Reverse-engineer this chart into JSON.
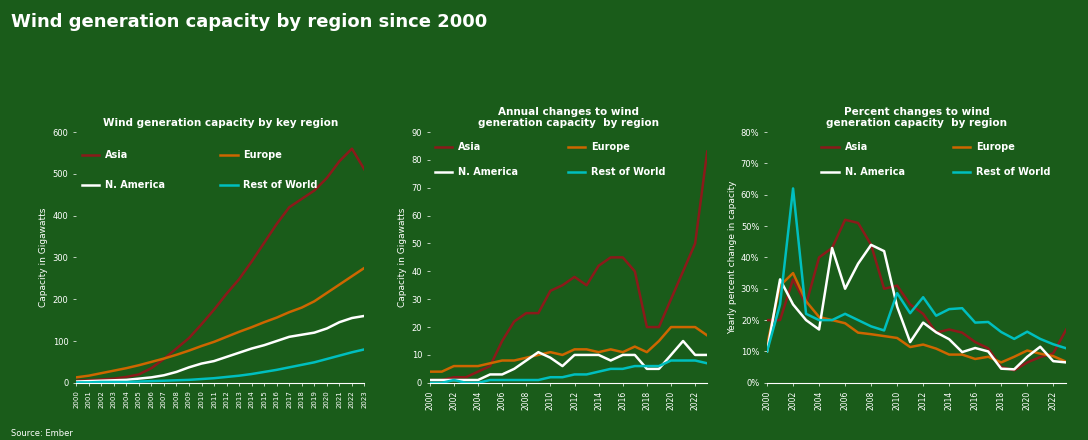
{
  "title": "Wind generation capacity by region since 2000",
  "background_color": "#1a5c1a",
  "text_color": "#ffffff",
  "source": "Source: Ember",
  "years_capacity": [
    2000,
    2001,
    2002,
    2003,
    2004,
    2005,
    2006,
    2007,
    2008,
    2009,
    2010,
    2011,
    2012,
    2013,
    2014,
    2015,
    2016,
    2017,
    2018,
    2019,
    2020,
    2021,
    2022,
    2023
  ],
  "asia_capacity": [
    5,
    6,
    8,
    10,
    14,
    20,
    35,
    57,
    82,
    107,
    140,
    175,
    213,
    248,
    290,
    335,
    380,
    420,
    440,
    460,
    490,
    530,
    560,
    510
  ],
  "europe_capacity": [
    13,
    17,
    23,
    29,
    35,
    42,
    50,
    58,
    67,
    77,
    88,
    98,
    110,
    122,
    133,
    145,
    156,
    169,
    180,
    195,
    215,
    235,
    255,
    275
  ],
  "namerica_capacity": [
    3,
    4,
    5,
    6,
    7,
    10,
    13,
    18,
    26,
    37,
    46,
    52,
    62,
    72,
    82,
    90,
    100,
    110,
    115,
    120,
    130,
    145,
    155,
    160
  ],
  "row_capacity": [
    1,
    1,
    2,
    2,
    2,
    3,
    4,
    5,
    6,
    7,
    9,
    11,
    14,
    17,
    21,
    26,
    31,
    37,
    43,
    49,
    57,
    65,
    73,
    80
  ],
  "years_annual": [
    2000,
    2001,
    2002,
    2003,
    2004,
    2005,
    2006,
    2007,
    2008,
    2009,
    2010,
    2011,
    2012,
    2013,
    2014,
    2015,
    2016,
    2017,
    2018,
    2019,
    2020,
    2021,
    2022,
    2023
  ],
  "asia_annual": [
    1,
    1,
    2,
    2,
    4,
    6,
    15,
    22,
    25,
    25,
    33,
    35,
    38,
    35,
    42,
    45,
    45,
    40,
    20,
    20,
    30,
    40,
    50,
    83
  ],
  "europe_annual": [
    4,
    4,
    6,
    6,
    6,
    7,
    8,
    8,
    9,
    10,
    11,
    10,
    12,
    12,
    11,
    12,
    11,
    13,
    11,
    15,
    20,
    20,
    20,
    17
  ],
  "namerica_annual": [
    1,
    1,
    1,
    1,
    1,
    3,
    3,
    5,
    8,
    11,
    9,
    6,
    10,
    10,
    10,
    8,
    10,
    10,
    5,
    5,
    10,
    15,
    10,
    10
  ],
  "row_annual": [
    0,
    0,
    1,
    0,
    0,
    1,
    1,
    1,
    1,
    1,
    2,
    2,
    3,
    3,
    4,
    5,
    5,
    6,
    6,
    6,
    8,
    8,
    8,
    7
  ],
  "years_pct": [
    2000,
    2001,
    2002,
    2003,
    2004,
    2005,
    2006,
    2007,
    2008,
    2009,
    2010,
    2011,
    2012,
    2013,
    2014,
    2015,
    2016,
    2017,
    2018,
    2019,
    2020,
    2021,
    2022,
    2023
  ],
  "asia_pct": [
    0.2,
    0.2,
    0.33,
    0.25,
    0.4,
    0.43,
    0.52,
    0.51,
    0.44,
    0.3,
    0.31,
    0.25,
    0.22,
    0.16,
    0.17,
    0.16,
    0.13,
    0.11,
    0.05,
    0.04,
    0.065,
    0.082,
    0.094,
    0.17
  ],
  "europe_pct": [
    0.12,
    0.31,
    0.35,
    0.26,
    0.21,
    0.2,
    0.19,
    0.16,
    0.155,
    0.149,
    0.143,
    0.114,
    0.122,
    0.109,
    0.09,
    0.09,
    0.076,
    0.083,
    0.065,
    0.083,
    0.103,
    0.093,
    0.085,
    0.067
  ],
  "namerica_pct": [
    0.1,
    0.33,
    0.25,
    0.2,
    0.17,
    0.43,
    0.3,
    0.38,
    0.44,
    0.42,
    0.243,
    0.13,
    0.192,
    0.161,
    0.139,
    0.098,
    0.111,
    0.1,
    0.045,
    0.043,
    0.083,
    0.115,
    0.069,
    0.065
  ],
  "row_pct": [
    0.1,
    0.25,
    0.62,
    0.22,
    0.2,
    0.2,
    0.22,
    0.2,
    0.18,
    0.167,
    0.286,
    0.222,
    0.273,
    0.214,
    0.235,
    0.238,
    0.192,
    0.194,
    0.162,
    0.14,
    0.163,
    0.14,
    0.123,
    0.11
  ],
  "subplot1_title": "Wind generation capacity by key region",
  "subplot2_title": "Annual changes to wind\ngeneration capacity  by region",
  "subplot3_title": "Percent changes to wind\ngeneration capacity  by region",
  "ylabel1": "Capacity in Gigawatts",
  "ylabel2": "Capacity in Gigawatts",
  "ylabel3": "Yearly percent change in capacity",
  "ylim1": [
    0,
    600
  ],
  "ylim2": [
    0,
    90
  ],
  "ylim3": [
    0,
    0.8
  ],
  "yticks1": [
    0,
    100,
    200,
    300,
    400,
    500,
    600
  ],
  "yticks2": [
    0,
    10,
    20,
    30,
    40,
    50,
    60,
    70,
    80,
    90
  ],
  "yticks3": [
    0,
    0.1,
    0.2,
    0.3,
    0.4,
    0.5,
    0.6,
    0.7,
    0.8
  ],
  "color_asia": "#8B1A1A",
  "color_europe": "#CD6600",
  "color_namerica": "#ffffff",
  "color_row": "#00BFBF",
  "line_width": 1.8
}
